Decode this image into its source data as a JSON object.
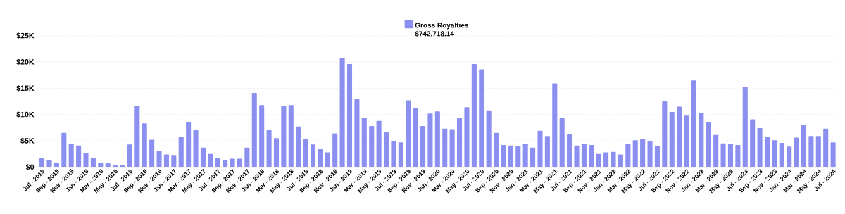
{
  "chart_data": {
    "type": "bar",
    "categories": [
      "Jul - 2015",
      null,
      "Sep - 2015",
      null,
      "Nov - 2015",
      null,
      "Jan - 2016",
      null,
      "Mar - 2016",
      null,
      "May - 2016",
      null,
      "Jul - 2016",
      null,
      "Sep - 2016",
      null,
      "Nov - 2016",
      null,
      "Jan - 2017",
      null,
      "Mar - 2017",
      null,
      "May - 2017",
      null,
      "Jul - 2017",
      null,
      "Sep - 2017",
      null,
      "Nov - 2017",
      null,
      "Jan - 2018",
      null,
      "Mar - 2018",
      null,
      "May - 2018",
      null,
      "Jul - 2018",
      null,
      "Sep - 2018",
      null,
      "Nov - 2018",
      null,
      "Jan - 2019",
      null,
      "Mar - 2019",
      null,
      "May - 2019",
      null,
      "Jul - 2019",
      null,
      "Sep - 2019",
      null,
      "Nov - 2019",
      null,
      "Jan - 2020",
      null,
      "Mar - 2020",
      null,
      "May - 2020",
      null,
      "Jul - 2020",
      null,
      "Sep - 2020",
      null,
      "Nov - 2020",
      null,
      "Jan - 2021",
      null,
      "Mar - 2021",
      null,
      "May - 2021",
      null,
      "Jul - 2021",
      null,
      "Sep - 2021",
      null,
      "Nov - 2021",
      null,
      "Jan - 2022",
      null,
      "Mar - 2022",
      null,
      "May - 2022",
      null,
      "Jul - 2022",
      null,
      "Sep - 2022",
      null,
      "Nov - 2022",
      null,
      "Jan - 2023",
      null,
      "Mar - 2023",
      null,
      "May - 2023",
      null,
      "Jul - 2023",
      null,
      "Sep - 2023",
      null,
      "Nov - 2023",
      null,
      "Jan - 2024",
      null,
      "Mar - 2024",
      null,
      "May - 2024",
      null,
      "Jul - 2024"
    ],
    "series": [
      {
        "name": "Gross Royalties",
        "color": "#8b8ff0",
        "values": [
          1700,
          1300,
          800,
          6500,
          4400,
          4100,
          2700,
          1800,
          800,
          700,
          400,
          300,
          4300,
          11700,
          8300,
          5200,
          3000,
          2400,
          2300,
          5800,
          8500,
          7000,
          3700,
          2500,
          1800,
          1300,
          1600,
          1600,
          3700,
          14100,
          11800,
          7000,
          5500,
          11600,
          11800,
          7700,
          5400,
          4300,
          3500,
          2800,
          6400,
          20800,
          19600,
          12900,
          9400,
          7800,
          8800,
          6600,
          5000,
          4700,
          12700,
          11300,
          7800,
          10200,
          10600,
          7300,
          7200,
          9300,
          11400,
          19600,
          18600,
          10800,
          6500,
          4200,
          4100,
          4000,
          4400,
          3700,
          6900,
          5900,
          15900,
          9300,
          6200,
          4100,
          4400,
          4200,
          2500,
          2800,
          2900,
          2400,
          4400,
          5100,
          5300,
          4900,
          4000,
          12500,
          10500,
          11500,
          9800,
          16500,
          10300,
          8500,
          6100,
          4500,
          4400,
          4200,
          15200,
          9100,
          7400,
          5800,
          5100,
          4600,
          3900,
          5600,
          8000,
          5900,
          5900,
          7300,
          4700
        ]
      }
    ],
    "annotations": [
      "$742,718.14"
    ],
    "ylim": [
      0,
      25000
    ],
    "yticks": [
      {
        "value": 0,
        "label": "$0"
      },
      {
        "value": 5000,
        "label": "$5K"
      },
      {
        "value": 10000,
        "label": "$10K"
      },
      {
        "value": 15000,
        "label": "$15K"
      },
      {
        "value": 20000,
        "label": "$20K"
      },
      {
        "value": 25000,
        "label": "$25K"
      }
    ],
    "grid": "y",
    "legend": "top"
  }
}
